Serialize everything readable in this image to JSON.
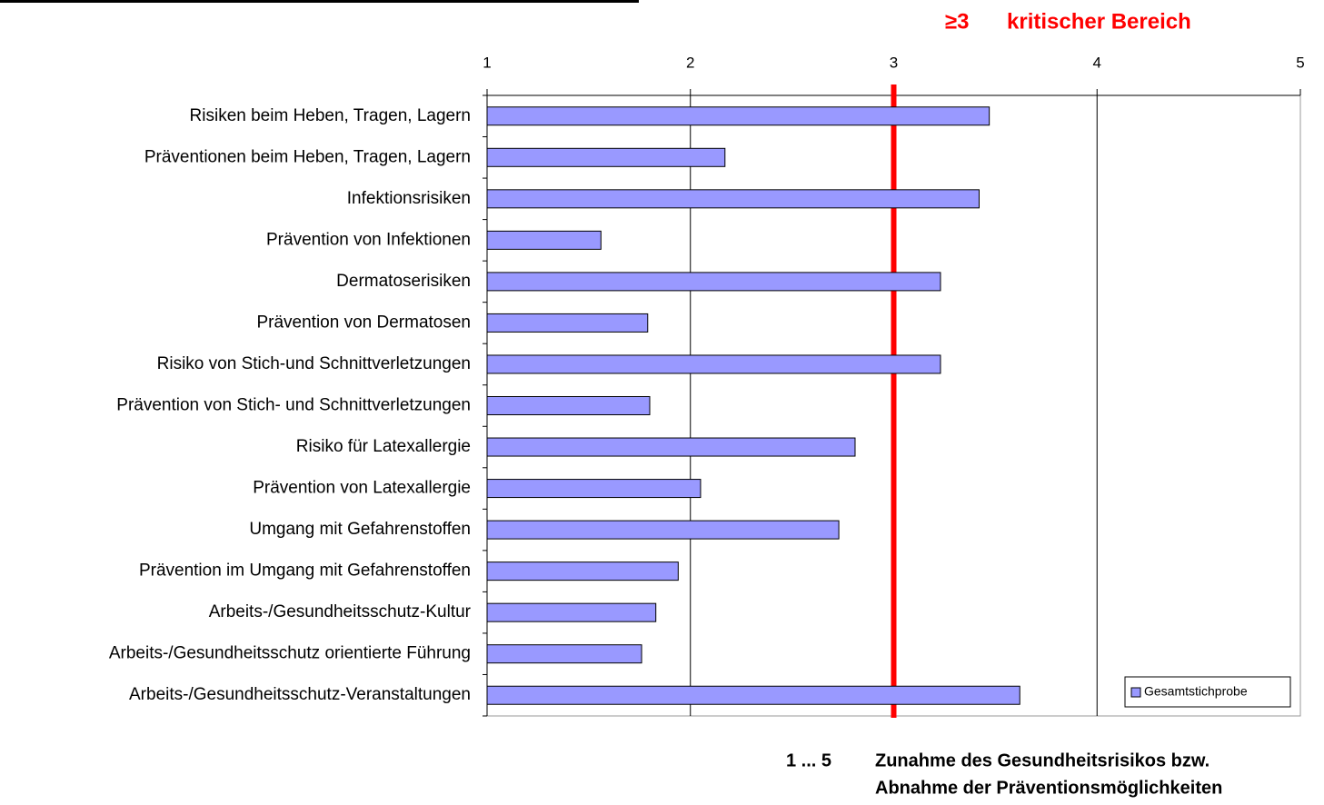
{
  "chart_data": {
    "type": "hbar",
    "categories": [
      "Risiken beim Heben, Tragen, Lagern",
      "Präventionen beim Heben, Tragen, Lagern",
      "Infektionsrisiken",
      "Prävention von Infektionen",
      "Dermatoserisiken",
      "Prävention von Dermatosen",
      "Risiko von Stich-und Schnittverletzungen",
      "Prävention von Stich- und Schnittverletzungen",
      "Risiko für Latexallergie",
      "Prävention von Latexallergie",
      "Umgang mit Gefahrenstoffen",
      "Prävention im Umgang mit Gefahrenstoffen",
      "Arbeits-/Gesundheitsschutz-Kultur",
      "Arbeits-/Gesundheitsschutz orientierte Führung",
      "Arbeits-/Gesundheitsschutz-Veranstaltungen"
    ],
    "series": [
      {
        "name": "Gesamtstichprobe",
        "color": "#9999ff",
        "values": [
          3.47,
          2.17,
          3.42,
          1.56,
          3.23,
          1.79,
          3.23,
          1.8,
          2.81,
          2.05,
          2.73,
          1.94,
          1.83,
          1.76,
          3.62
        ]
      }
    ],
    "xlim": [
      1,
      5
    ],
    "xticks": [
      1,
      2,
      3,
      4,
      5
    ],
    "grid": true,
    "legend": "lower right",
    "threshold": 3,
    "threshold_color": "#ff0000",
    "threshold_label": "≥3",
    "threshold_text": "kritischer Bereich",
    "footnote": {
      "range": "1 ... 5",
      "lines": [
        "Zunahme des Gesundheitsrisikos bzw.",
        "Abnahme der Präventionsmöglichkeiten"
      ]
    }
  }
}
